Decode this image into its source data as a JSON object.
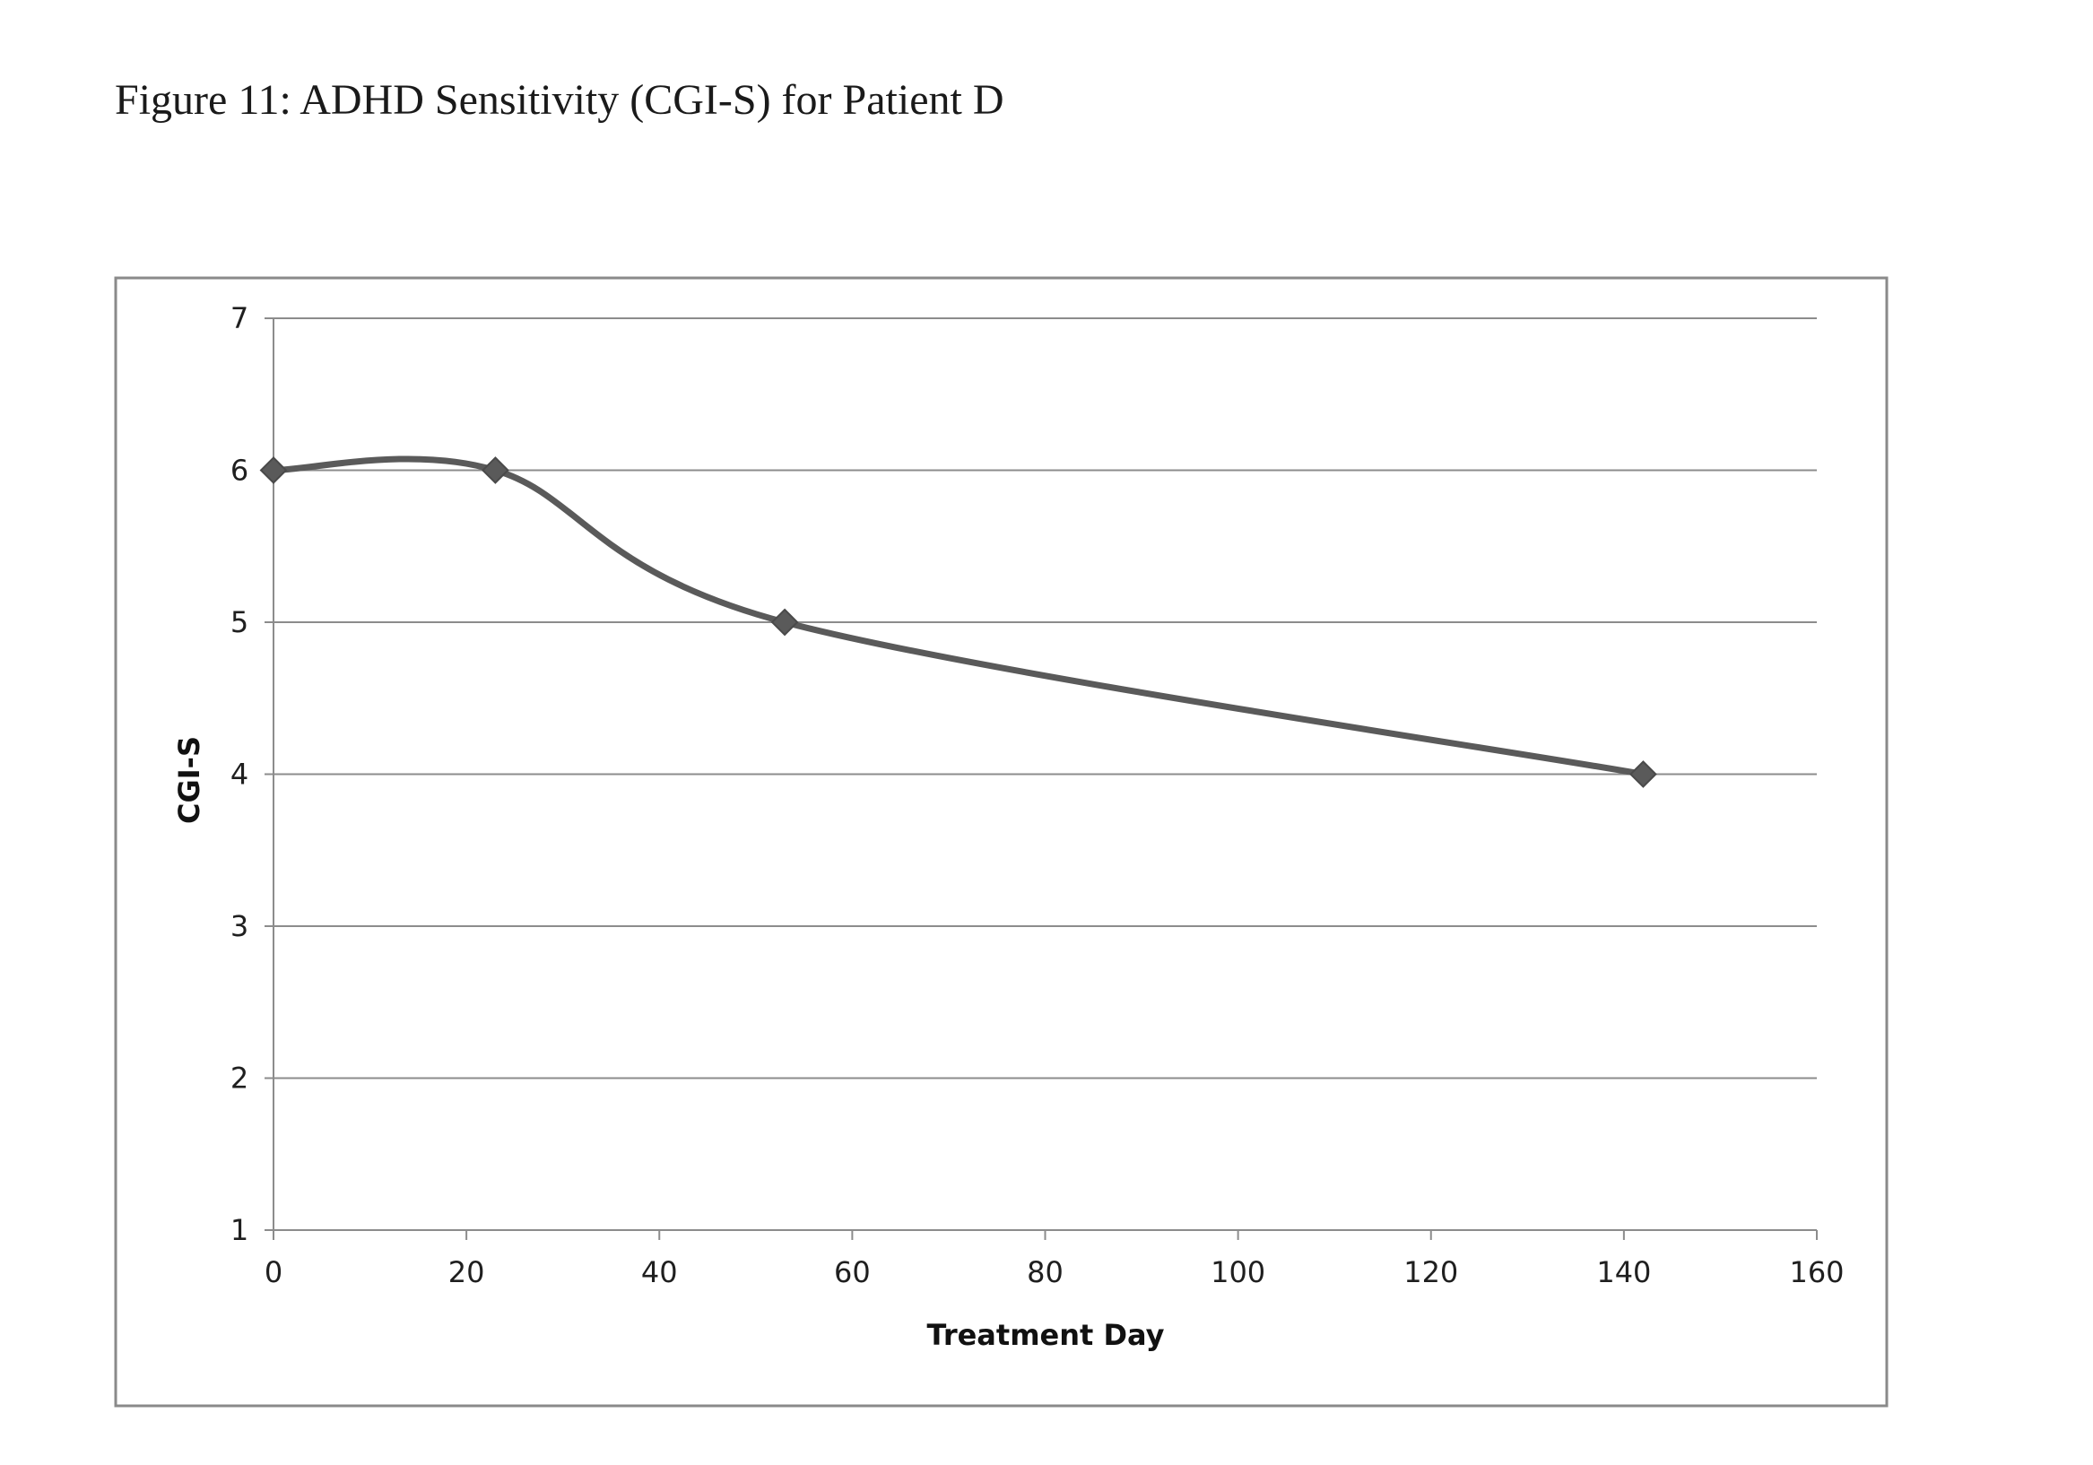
{
  "figure": {
    "title": "Figure 11: ADHD Sensitivity (CGI-S) for Patient D"
  },
  "chart_data": {
    "type": "line",
    "title": "",
    "xlabel": "Treatment Day",
    "ylabel": "CGI-S",
    "xlim": [
      0,
      160
    ],
    "ylim": [
      1,
      7
    ],
    "xticks": [
      0,
      20,
      40,
      60,
      80,
      100,
      120,
      140,
      160
    ],
    "yticks": [
      1,
      2,
      3,
      4,
      5,
      6,
      7
    ],
    "grid": true,
    "smooth": true,
    "legend": "none",
    "series": [
      {
        "name": "CGI-S",
        "marker": "diamond",
        "color": "#5a5a5a",
        "x": [
          0,
          23,
          53,
          142
        ],
        "y": [
          6,
          6,
          5,
          4
        ]
      }
    ]
  }
}
